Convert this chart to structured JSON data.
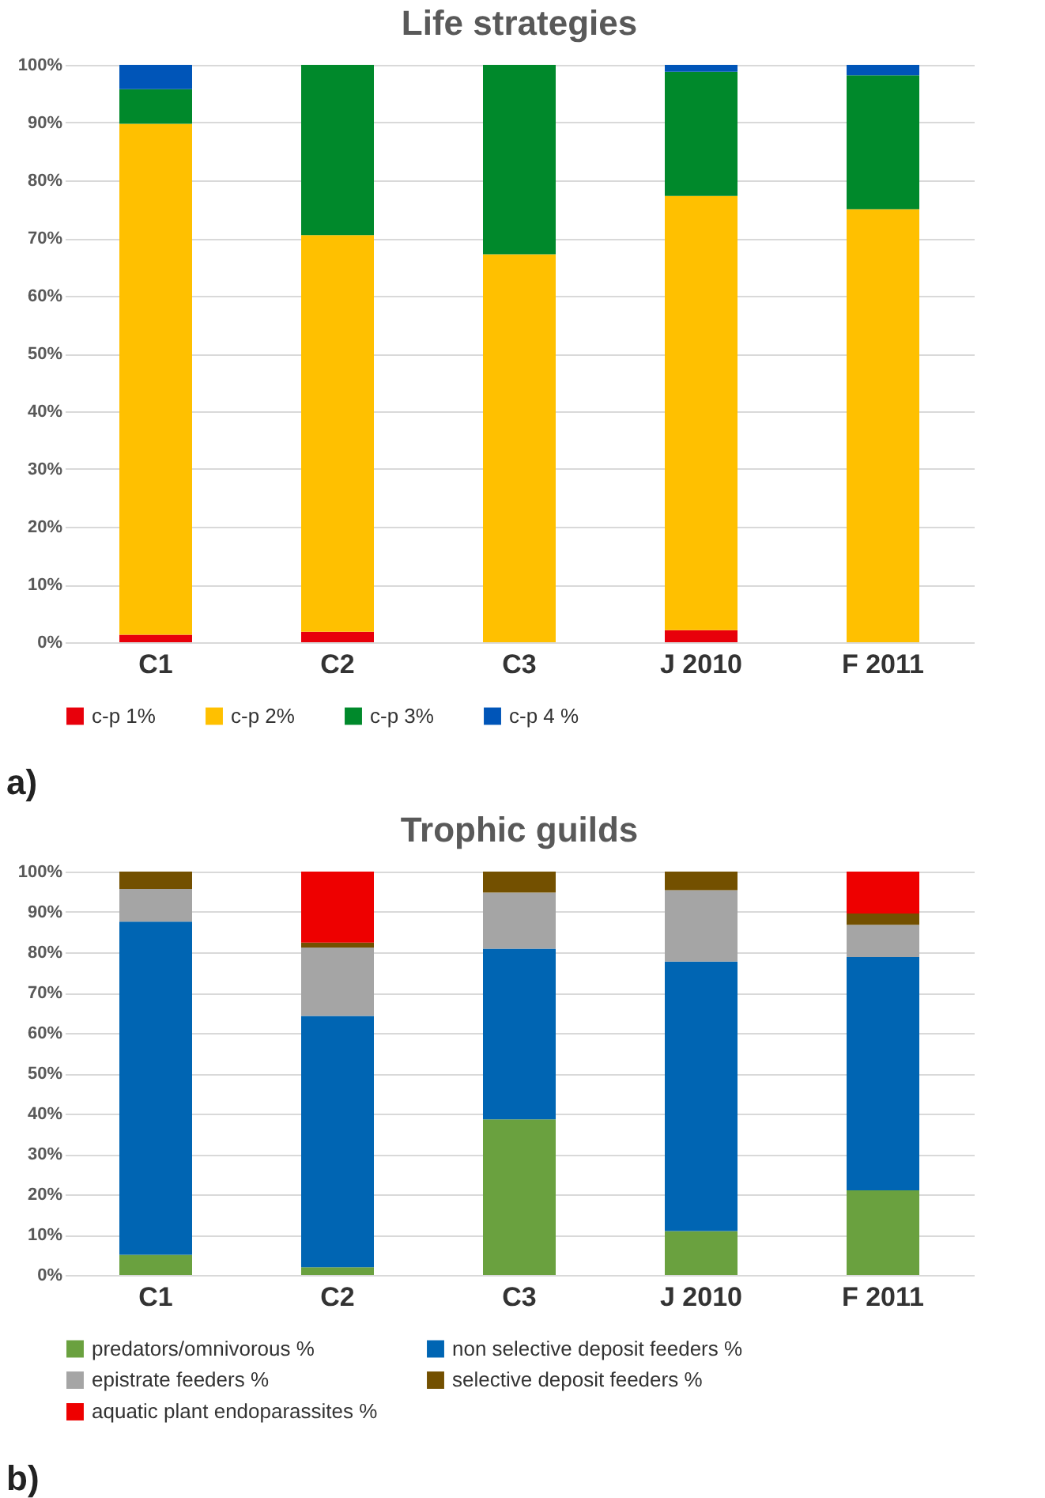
{
  "chart_data": [
    {
      "type": "bar",
      "title": "Life strategies",
      "stacked": true,
      "categories": [
        "C1",
        "C2",
        "C3",
        "J 2010",
        "F 2011"
      ],
      "series": [
        {
          "name": "c-p 1%",
          "color": "#e8000b",
          "values": [
            1.3,
            1.8,
            0,
            2.1,
            0
          ]
        },
        {
          "name": "c-p 2%",
          "color": "#ffc000",
          "values": [
            88.5,
            68.7,
            67.2,
            75.2,
            75.0
          ]
        },
        {
          "name": "c-p 3%",
          "color": "#00892b",
          "values": [
            6.0,
            29.5,
            32.8,
            21.5,
            23.2
          ]
        },
        {
          "name": "c-p 4 %",
          "color": "#0055b8",
          "values": [
            4.2,
            0,
            0,
            1.2,
            1.8
          ]
        }
      ],
      "ylim": [
        0,
        100
      ],
      "yticks": [
        {
          "value": 0,
          "label": "0%"
        },
        {
          "value": 10,
          "label": "10%"
        },
        {
          "value": 20,
          "label": "20%"
        },
        {
          "value": 30,
          "label": "30%"
        },
        {
          "value": 40,
          "label": "40%"
        },
        {
          "value": 50,
          "label": "50%"
        },
        {
          "value": 60,
          "label": "60%"
        },
        {
          "value": 70,
          "label": "70%"
        },
        {
          "value": 80,
          "label": "80%"
        },
        {
          "value": 90,
          "label": "90%"
        },
        {
          "value": 100,
          "label": "100%"
        }
      ],
      "grid": "y",
      "legend": "bottom",
      "annotations": [
        "a)"
      ]
    },
    {
      "type": "bar",
      "title": "Trophic guilds",
      "stacked": true,
      "categories": [
        "C1",
        "C2",
        "C3",
        "J 2010",
        "F 2011"
      ],
      "series": [
        {
          "name": "predators/omnivorous %",
          "color": "#6aa13f",
          "values": [
            5.0,
            1.9,
            38.6,
            10.9,
            21.0
          ]
        },
        {
          "name": "non selective deposit feeders %",
          "color": "#0065b3",
          "values": [
            82.6,
            62.3,
            42.3,
            66.8,
            57.8
          ]
        },
        {
          "name": "epistrate feeders %",
          "color": "#a5a5a5",
          "values": [
            8.1,
            17.0,
            13.9,
            17.7,
            8.0
          ]
        },
        {
          "name": "selective deposit feeders %",
          "color": "#735000",
          "values": [
            4.3,
            1.2,
            5.2,
            4.6,
            2.8
          ]
        },
        {
          "name": "aquatic plant endoparassites %",
          "color": "#ee0000",
          "values": [
            0,
            17.6,
            0,
            0,
            10.4
          ]
        }
      ],
      "ylim": [
        0,
        100
      ],
      "yticks": [
        {
          "value": 0,
          "label": "0%"
        },
        {
          "value": 10,
          "label": "10%"
        },
        {
          "value": 20,
          "label": "20%"
        },
        {
          "value": 30,
          "label": "30%"
        },
        {
          "value": 40,
          "label": "40%"
        },
        {
          "value": 50,
          "label": "50%"
        },
        {
          "value": 60,
          "label": "60%"
        },
        {
          "value": 70,
          "label": "70%"
        },
        {
          "value": 80,
          "label": "80%"
        },
        {
          "value": 90,
          "label": "90%"
        },
        {
          "value": 100,
          "label": "100%"
        }
      ],
      "grid": "y",
      "legend": "bottom",
      "annotations": [
        "b)"
      ]
    }
  ]
}
